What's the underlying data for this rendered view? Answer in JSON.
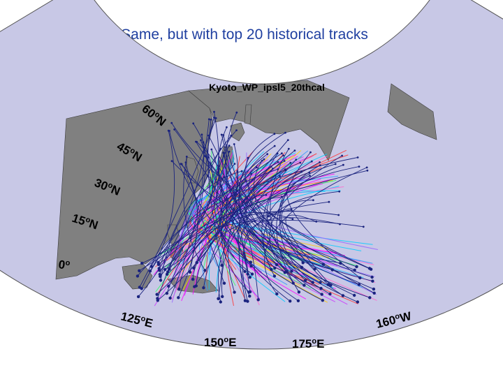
{
  "slide": {
    "title": "Same, but with top 20 historical tracks"
  },
  "map": {
    "title": "Kyoto_WP_ipsl5_20thcal",
    "ocean_color": "#c8c8e6",
    "land_color": "#808080",
    "border_color": "#3c3c3c",
    "lat_labels": [
      {
        "deg": "60",
        "hemi": "N"
      },
      {
        "deg": "45",
        "hemi": "N"
      },
      {
        "deg": "30",
        "hemi": "N"
      },
      {
        "deg": "15",
        "hemi": "N"
      },
      {
        "deg": "0",
        "hemi": ""
      }
    ],
    "lon_labels": [
      {
        "deg": "125",
        "hemi": "E"
      },
      {
        "deg": "150",
        "hemi": "E"
      },
      {
        "deg": "175",
        "hemi": "E"
      },
      {
        "deg": "160",
        "hemi": "W"
      }
    ],
    "historical_track_count": 20,
    "historical_track_color": "#1a237e",
    "model_track_colors": [
      "#ff00ff",
      "#ff66cc",
      "#cc33ff",
      "#00ccff",
      "#ffcc00",
      "#33ff66",
      "#ff3333",
      "#9966ff",
      "#3399ff"
    ]
  }
}
